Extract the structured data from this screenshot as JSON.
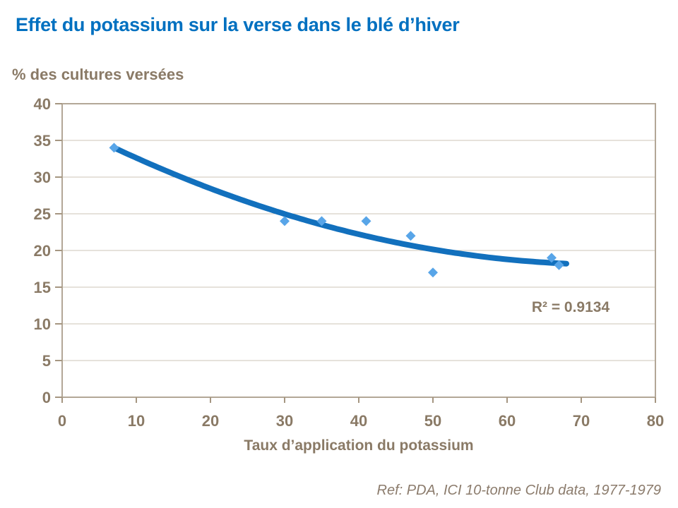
{
  "footer_ref": "Ref: PDA, ICI 10-tonne Club data, 1977-1979",
  "chart_data": {
    "type": "scatter",
    "title": "Effet du potassium sur la verse dans le blé d’hiver",
    "xlabel": "Taux d’application du potassium",
    "ylabel": "% des cultures versées",
    "xlim": [
      0,
      80
    ],
    "ylim": [
      0,
      40
    ],
    "x_ticks": [
      0,
      10,
      20,
      30,
      40,
      50,
      60,
      70,
      80
    ],
    "y_ticks": [
      0,
      5,
      10,
      15,
      20,
      25,
      30,
      35,
      40
    ],
    "grid": "horizontal",
    "legend_position": "none",
    "series": [
      {
        "name": "% des cultures versées",
        "marker": "diamond",
        "points": [
          [
            7,
            34
          ],
          [
            30,
            24
          ],
          [
            35,
            24
          ],
          [
            41,
            24
          ],
          [
            47,
            22
          ],
          [
            50,
            17
          ],
          [
            66,
            19
          ],
          [
            67,
            18
          ]
        ]
      }
    ],
    "trendline": {
      "type": "polynomial-2",
      "coefficients": {
        "c0": 37.49,
        "c1": -0.5226,
        "c2": 0.003515
      },
      "x_range": [
        7,
        68
      ],
      "r_squared_label": "R² = 0.9134"
    },
    "colors": {
      "title": "#0070c0",
      "axis_text": "#8a7a66",
      "marker": "#58a5e8",
      "trend": "#1270bd",
      "gridline": "#cdc4b7",
      "plot_border": "#b3a797",
      "tick": "#a59681",
      "footer_text": "#8b7b6c"
    }
  }
}
